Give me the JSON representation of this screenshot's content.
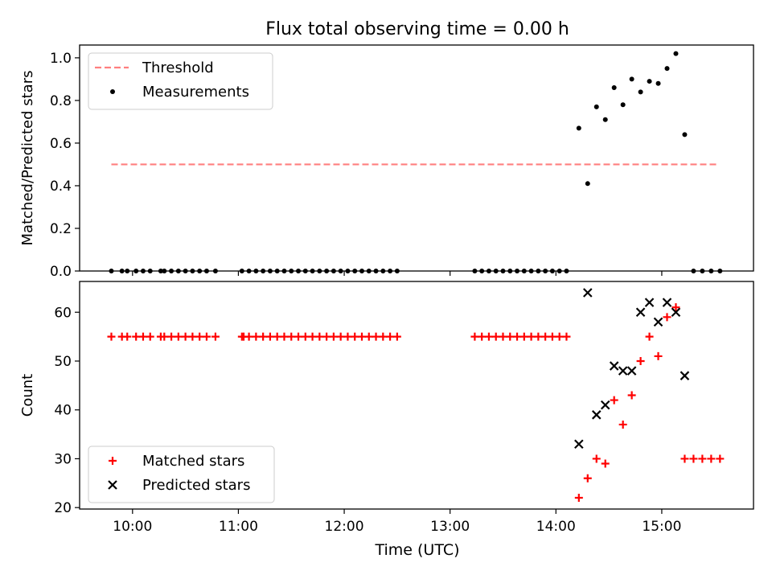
{
  "chart_data": {
    "title": "Flux total observing time = 0.00 h",
    "xlabel": "Time (UTC)",
    "x_ticks": [
      {
        "hour": 10,
        "label": "10:00"
      },
      {
        "hour": 11,
        "label": "11:00"
      },
      {
        "hour": 12,
        "label": "12:00"
      },
      {
        "hour": 13,
        "label": "13:00"
      },
      {
        "hour": 14,
        "label": "14:00"
      },
      {
        "hour": 15,
        "label": "15:00"
      }
    ],
    "xlim": [
      "09:30",
      "15:52"
    ],
    "panels": [
      {
        "type": "scatter",
        "ylabel": "Matched/Predicted stars",
        "ylim": [
          0,
          1.06
        ],
        "yticks": [
          "0.0",
          "0.2",
          "0.4",
          "0.6",
          "0.8",
          "1.0"
        ],
        "yticks_values": [
          0,
          0.2,
          0.4,
          0.6,
          0.8,
          1.0
        ],
        "legend": {
          "position": "upper-left",
          "entries": [
            {
              "label": "Threshold",
              "style": "dashed-line",
              "color": "#ff7f7f"
            },
            {
              "label": "Measurements",
              "style": "dot",
              "color": "#000000"
            }
          ]
        },
        "threshold": {
          "value": 0.5,
          "x_start": "09:48",
          "x_end": "15:32",
          "color": "#ff7f7f"
        },
        "measurements": [
          {
            "x": "09:48",
            "y": 0
          },
          {
            "x": "09:54",
            "y": 0
          },
          {
            "x": "09:57",
            "y": 0
          },
          {
            "x": "10:02",
            "y": 0
          },
          {
            "x": "10:06",
            "y": 0
          },
          {
            "x": "10:10",
            "y": 0
          },
          {
            "x": "10:16",
            "y": 0
          },
          {
            "x": "10:18",
            "y": 0
          },
          {
            "x": "10:22",
            "y": 0
          },
          {
            "x": "10:26",
            "y": 0
          },
          {
            "x": "10:30",
            "y": 0
          },
          {
            "x": "10:34",
            "y": 0
          },
          {
            "x": "10:38",
            "y": 0
          },
          {
            "x": "10:42",
            "y": 0
          },
          {
            "x": "10:47",
            "y": 0
          },
          {
            "x": "11:02",
            "y": 0
          },
          {
            "x": "11:06",
            "y": 0
          },
          {
            "x": "11:10",
            "y": 0
          },
          {
            "x": "11:14",
            "y": 0
          },
          {
            "x": "11:18",
            "y": 0
          },
          {
            "x": "11:22",
            "y": 0
          },
          {
            "x": "11:26",
            "y": 0
          },
          {
            "x": "11:30",
            "y": 0
          },
          {
            "x": "11:34",
            "y": 0
          },
          {
            "x": "11:38",
            "y": 0
          },
          {
            "x": "11:42",
            "y": 0
          },
          {
            "x": "11:46",
            "y": 0
          },
          {
            "x": "11:50",
            "y": 0
          },
          {
            "x": "11:54",
            "y": 0
          },
          {
            "x": "11:58",
            "y": 0
          },
          {
            "x": "12:02",
            "y": 0
          },
          {
            "x": "12:06",
            "y": 0
          },
          {
            "x": "12:10",
            "y": 0
          },
          {
            "x": "12:14",
            "y": 0
          },
          {
            "x": "12:18",
            "y": 0
          },
          {
            "x": "12:22",
            "y": 0
          },
          {
            "x": "12:26",
            "y": 0
          },
          {
            "x": "12:30",
            "y": 0
          },
          {
            "x": "13:14",
            "y": 0
          },
          {
            "x": "13:18",
            "y": 0
          },
          {
            "x": "13:22",
            "y": 0
          },
          {
            "x": "13:26",
            "y": 0
          },
          {
            "x": "13:30",
            "y": 0
          },
          {
            "x": "13:34",
            "y": 0
          },
          {
            "x": "13:38",
            "y": 0
          },
          {
            "x": "13:42",
            "y": 0
          },
          {
            "x": "13:46",
            "y": 0
          },
          {
            "x": "13:50",
            "y": 0
          },
          {
            "x": "13:54",
            "y": 0
          },
          {
            "x": "13:58",
            "y": 0
          },
          {
            "x": "14:02",
            "y": 0
          },
          {
            "x": "14:06",
            "y": 0
          },
          {
            "x": "14:13",
            "y": 0.67
          },
          {
            "x": "14:18",
            "y": 0.41
          },
          {
            "x": "14:23",
            "y": 0.77
          },
          {
            "x": "14:28",
            "y": 0.71
          },
          {
            "x": "14:33",
            "y": 0.86
          },
          {
            "x": "14:38",
            "y": 0.78
          },
          {
            "x": "14:43",
            "y": 0.9
          },
          {
            "x": "14:48",
            "y": 0.84
          },
          {
            "x": "14:53",
            "y": 0.89
          },
          {
            "x": "14:58",
            "y": 0.88
          },
          {
            "x": "15:03",
            "y": 0.95
          },
          {
            "x": "15:08",
            "y": 1.02
          },
          {
            "x": "15:13",
            "y": 0.64
          },
          {
            "x": "15:18",
            "y": 0
          },
          {
            "x": "15:23",
            "y": 0
          },
          {
            "x": "15:28",
            "y": 0
          },
          {
            "x": "15:33",
            "y": 0
          }
        ]
      },
      {
        "type": "scatter",
        "ylabel": "Count",
        "ylim": [
          19.7,
          66.3
        ],
        "yticks": [
          "20",
          "30",
          "40",
          "50",
          "60"
        ],
        "yticks_values": [
          20,
          30,
          40,
          50,
          60
        ],
        "legend": {
          "position": "lower-left",
          "entries": [
            {
              "label": "Matched stars",
              "style": "plus",
              "color": "#ff0000"
            },
            {
              "label": "Predicted stars",
              "style": "cross",
              "color": "#000000"
            }
          ]
        },
        "matched": [
          {
            "x": "09:48",
            "y": 55
          },
          {
            "x": "09:54",
            "y": 55
          },
          {
            "x": "09:57",
            "y": 55
          },
          {
            "x": "10:02",
            "y": 55
          },
          {
            "x": "10:06",
            "y": 55
          },
          {
            "x": "10:10",
            "y": 55
          },
          {
            "x": "10:16",
            "y": 55
          },
          {
            "x": "10:18",
            "y": 55
          },
          {
            "x": "10:22",
            "y": 55
          },
          {
            "x": "10:26",
            "y": 55
          },
          {
            "x": "10:30",
            "y": 55
          },
          {
            "x": "10:34",
            "y": 55
          },
          {
            "x": "10:38",
            "y": 55
          },
          {
            "x": "10:42",
            "y": 55
          },
          {
            "x": "10:47",
            "y": 55
          },
          {
            "x": "11:02",
            "y": 55
          },
          {
            "x": "11:03",
            "y": 55
          },
          {
            "x": "11:06",
            "y": 55
          },
          {
            "x": "11:10",
            "y": 55
          },
          {
            "x": "11:14",
            "y": 55
          },
          {
            "x": "11:18",
            "y": 55
          },
          {
            "x": "11:22",
            "y": 55
          },
          {
            "x": "11:26",
            "y": 55
          },
          {
            "x": "11:30",
            "y": 55
          },
          {
            "x": "11:34",
            "y": 55
          },
          {
            "x": "11:38",
            "y": 55
          },
          {
            "x": "11:42",
            "y": 55
          },
          {
            "x": "11:46",
            "y": 55
          },
          {
            "x": "11:50",
            "y": 55
          },
          {
            "x": "11:54",
            "y": 55
          },
          {
            "x": "11:58",
            "y": 55
          },
          {
            "x": "12:02",
            "y": 55
          },
          {
            "x": "12:06",
            "y": 55
          },
          {
            "x": "12:10",
            "y": 55
          },
          {
            "x": "12:14",
            "y": 55
          },
          {
            "x": "12:18",
            "y": 55
          },
          {
            "x": "12:22",
            "y": 55
          },
          {
            "x": "12:26",
            "y": 55
          },
          {
            "x": "12:30",
            "y": 55
          },
          {
            "x": "13:14",
            "y": 55
          },
          {
            "x": "13:18",
            "y": 55
          },
          {
            "x": "13:22",
            "y": 55
          },
          {
            "x": "13:26",
            "y": 55
          },
          {
            "x": "13:30",
            "y": 55
          },
          {
            "x": "13:34",
            "y": 55
          },
          {
            "x": "13:38",
            "y": 55
          },
          {
            "x": "13:42",
            "y": 55
          },
          {
            "x": "13:46",
            "y": 55
          },
          {
            "x": "13:50",
            "y": 55
          },
          {
            "x": "13:54",
            "y": 55
          },
          {
            "x": "13:58",
            "y": 55
          },
          {
            "x": "14:02",
            "y": 55
          },
          {
            "x": "14:06",
            "y": 55
          },
          {
            "x": "14:13",
            "y": 22
          },
          {
            "x": "14:18",
            "y": 26
          },
          {
            "x": "14:23",
            "y": 30
          },
          {
            "x": "14:28",
            "y": 29
          },
          {
            "x": "14:33",
            "y": 42
          },
          {
            "x": "14:38",
            "y": 37
          },
          {
            "x": "14:43",
            "y": 43
          },
          {
            "x": "14:48",
            "y": 50
          },
          {
            "x": "14:53",
            "y": 55
          },
          {
            "x": "14:58",
            "y": 51
          },
          {
            "x": "15:03",
            "y": 59
          },
          {
            "x": "15:08",
            "y": 61
          },
          {
            "x": "15:13",
            "y": 30
          },
          {
            "x": "15:18",
            "y": 30
          },
          {
            "x": "15:23",
            "y": 30
          },
          {
            "x": "15:28",
            "y": 30
          },
          {
            "x": "15:33",
            "y": 30
          }
        ],
        "predicted": [
          {
            "x": "14:13",
            "y": 33
          },
          {
            "x": "14:18",
            "y": 64
          },
          {
            "x": "14:23",
            "y": 39
          },
          {
            "x": "14:28",
            "y": 41
          },
          {
            "x": "14:33",
            "y": 49
          },
          {
            "x": "14:38",
            "y": 48
          },
          {
            "x": "14:43",
            "y": 48
          },
          {
            "x": "14:48",
            "y": 60
          },
          {
            "x": "14:53",
            "y": 62
          },
          {
            "x": "14:58",
            "y": 58
          },
          {
            "x": "15:03",
            "y": 62
          },
          {
            "x": "15:08",
            "y": 60
          },
          {
            "x": "15:13",
            "y": 47
          }
        ]
      }
    ]
  }
}
